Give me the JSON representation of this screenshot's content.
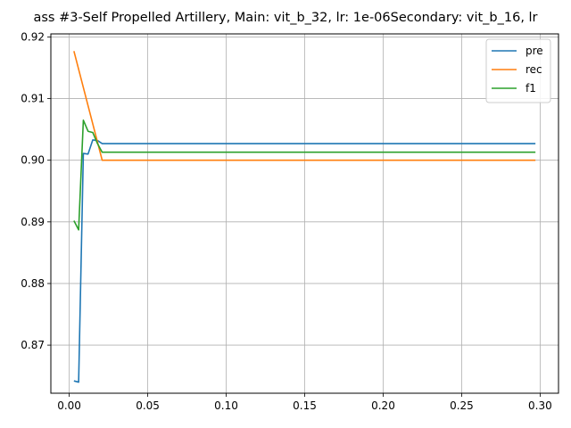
{
  "chart_data": {
    "type": "line",
    "title": "ass #3-Self Propelled Artillery, Main: vit_b_32, lr: 1e-06Secondary: vit_b_16, lr",
    "xlabel": "",
    "ylabel": "",
    "xlim": [
      -0.0117,
      0.3117
    ],
    "ylim": [
      0.8622,
      0.9205
    ],
    "xticks": [
      0.0,
      0.05,
      0.1,
      0.15,
      0.2,
      0.25,
      0.3
    ],
    "xtick_labels": [
      "0.00",
      "0.05",
      "0.10",
      "0.15",
      "0.20",
      "0.25",
      "0.30"
    ],
    "yticks": [
      0.87,
      0.88,
      0.89,
      0.9,
      0.91,
      0.92
    ],
    "ytick_labels": [
      "0.87",
      "0.88",
      "0.89",
      "0.90",
      "0.91",
      "0.92"
    ],
    "grid": true,
    "legend_position": "top-right",
    "series": [
      {
        "name": "pre",
        "color": "#1f77b4",
        "points": [
          [
            0.003,
            0.8642
          ],
          [
            0.006,
            0.864
          ],
          [
            0.009,
            0.9011
          ],
          [
            0.012,
            0.901
          ],
          [
            0.015,
            0.9033
          ],
          [
            0.018,
            0.9032
          ],
          [
            0.021,
            0.9027
          ],
          [
            0.1,
            0.9027
          ],
          [
            0.2,
            0.9027
          ],
          [
            0.297,
            0.9027
          ]
        ]
      },
      {
        "name": "rec",
        "color": "#ff7f0e",
        "points": [
          [
            0.003,
            0.9177
          ],
          [
            0.021,
            0.9
          ],
          [
            0.1,
            0.9
          ],
          [
            0.2,
            0.9
          ],
          [
            0.297,
            0.9
          ]
        ]
      },
      {
        "name": "f1",
        "color": "#2ca02c",
        "points": [
          [
            0.003,
            0.8902
          ],
          [
            0.006,
            0.8887
          ],
          [
            0.009,
            0.9065
          ],
          [
            0.012,
            0.9047
          ],
          [
            0.015,
            0.9045
          ],
          [
            0.018,
            0.9027
          ],
          [
            0.021,
            0.9013
          ],
          [
            0.1,
            0.9013
          ],
          [
            0.2,
            0.9013
          ],
          [
            0.297,
            0.9013
          ]
        ]
      }
    ]
  }
}
